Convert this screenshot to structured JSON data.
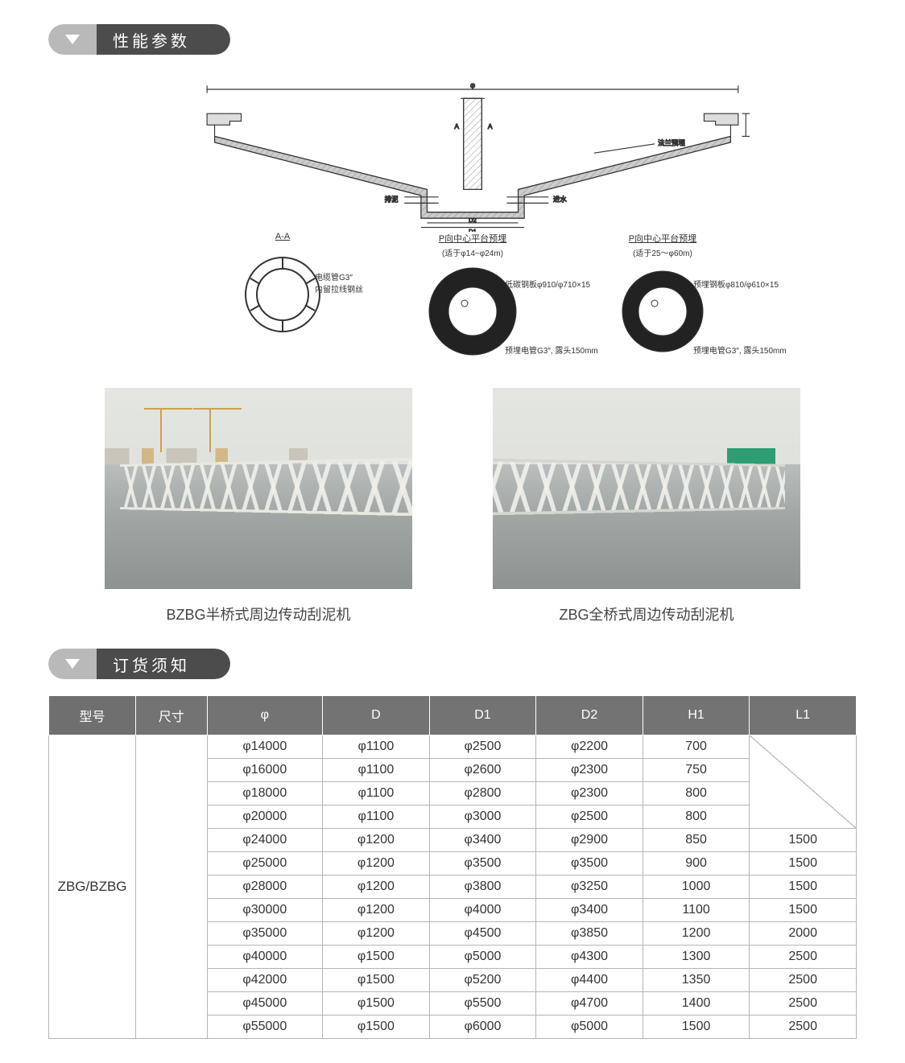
{
  "sections": {
    "performance": "性能参数",
    "ordering": "订货须知"
  },
  "diagram": {
    "top_label": "φ",
    "center_labels": {
      "left": "A",
      "right": "A"
    },
    "right_note": "法兰预埋",
    "left_note": "排泥",
    "inflow_label": "进水",
    "bottom_labels": {
      "d2": "D2",
      "d1": "D1"
    }
  },
  "details": [
    {
      "title": "A-A",
      "subtitle": "",
      "labels": [
        "电缆管G3″",
        "内留拉线钢丝"
      ],
      "ring": {
        "stroke": 2,
        "fill": false,
        "spokes": true
      }
    },
    {
      "title": "P向中心平台预埋",
      "subtitle": "(适于φ14~φ24m)",
      "labels": [
        "低碳钢板φ910/φ710×15",
        "预埋电管G3″, 露头150mm"
      ],
      "ring": {
        "stroke": 20,
        "fill": true,
        "spokes": false
      }
    },
    {
      "title": "P向中心平台预埋",
      "subtitle": "(适于25～φ60m)",
      "labels": [
        "预埋钢板φ810/φ610×15",
        "预埋电管G3″, 露头150mm"
      ],
      "ring": {
        "stroke": 18,
        "fill": true,
        "spokes": false
      }
    }
  ],
  "photos": [
    {
      "caption": "BZBG半桥式周边传动刮泥机",
      "variant": "photo1"
    },
    {
      "caption": "ZBG全桥式周边传动刮泥机",
      "variant": "photo2"
    }
  ],
  "table": {
    "headers": [
      "型号",
      "尺寸",
      "φ",
      "D",
      "D1",
      "D2",
      "H1",
      "L1"
    ],
    "model": "ZBG/BZBG",
    "col_widths_pct": [
      9,
      8,
      13,
      12,
      12,
      12,
      12,
      12
    ],
    "header_bg": "#737373",
    "header_fg": "#ffffff",
    "border_color": "#b5b5b5",
    "blank_L1_rows": 4,
    "rows": [
      [
        "φ14000",
        "φ1100",
        "φ2500",
        "φ2200",
        "700",
        ""
      ],
      [
        "φ16000",
        "φ1100",
        "φ2600",
        "φ2300",
        "750",
        ""
      ],
      [
        "φ18000",
        "φ1100",
        "φ2800",
        "φ2300",
        "800",
        ""
      ],
      [
        "φ20000",
        "φ1100",
        "φ3000",
        "φ2500",
        "800",
        ""
      ],
      [
        "φ24000",
        "φ1200",
        "φ3400",
        "φ2900",
        "850",
        "1500"
      ],
      [
        "φ25000",
        "φ1200",
        "φ3500",
        "φ3500",
        "900",
        "1500"
      ],
      [
        "φ28000",
        "φ1200",
        "φ3800",
        "φ3250",
        "1000",
        "1500"
      ],
      [
        "φ30000",
        "φ1200",
        "φ4000",
        "φ3400",
        "1100",
        "1500"
      ],
      [
        "φ35000",
        "φ1200",
        "φ4500",
        "φ3850",
        "1200",
        "2000"
      ],
      [
        "φ40000",
        "φ1500",
        "φ5000",
        "φ4300",
        "1300",
        "2500"
      ],
      [
        "φ42000",
        "φ1500",
        "φ5200",
        "φ4400",
        "1350",
        "2500"
      ],
      [
        "φ45000",
        "φ1500",
        "φ5500",
        "φ4700",
        "1400",
        "2500"
      ],
      [
        "φ55000",
        "φ1500",
        "φ6000",
        "φ5000",
        "1500",
        "2500"
      ]
    ]
  },
  "colors": {
    "pill_dark": "#4c4c4c",
    "pill_light": "#b9b9b9"
  }
}
